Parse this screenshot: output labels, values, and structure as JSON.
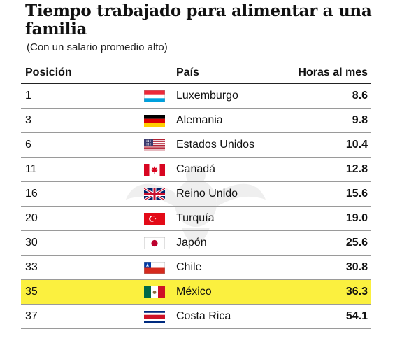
{
  "title": "Tiempo trabajado para alimentar a una familia",
  "subtitle": "(Con un salario promedio alto)",
  "chart_data": {
    "type": "table",
    "columns": [
      "Posición",
      "País",
      "Horas al mes"
    ],
    "highlight_color": "#fbf03f",
    "highlighted_row": "México",
    "rows": [
      {
        "posicion": "1",
        "pais": "Luxemburgo",
        "horas": "8.6",
        "flag": "luxembourg-flag"
      },
      {
        "posicion": "3",
        "pais": "Alemania",
        "horas": "9.8",
        "flag": "germany-flag"
      },
      {
        "posicion": "6",
        "pais": "Estados Unidos",
        "horas": "10.4",
        "flag": "usa-flag"
      },
      {
        "posicion": "11",
        "pais": "Canadá",
        "horas": "12.8",
        "flag": "canada-flag"
      },
      {
        "posicion": "16",
        "pais": "Reino Unido",
        "horas": "15.6",
        "flag": "uk-flag"
      },
      {
        "posicion": "20",
        "pais": "Turquía",
        "horas": "19.0",
        "flag": "turkey-flag"
      },
      {
        "posicion": "30",
        "pais": "Japón",
        "horas": "25.6",
        "flag": "japan-flag"
      },
      {
        "posicion": "33",
        "pais": "Chile",
        "horas": "30.8",
        "flag": "chile-flag"
      },
      {
        "posicion": "35",
        "pais": "México",
        "horas": "36.3",
        "flag": "mexico-flag"
      },
      {
        "posicion": "37",
        "pais": "Costa Rica",
        "horas": "54.1",
        "flag": "costa-rica-flag"
      }
    ]
  }
}
